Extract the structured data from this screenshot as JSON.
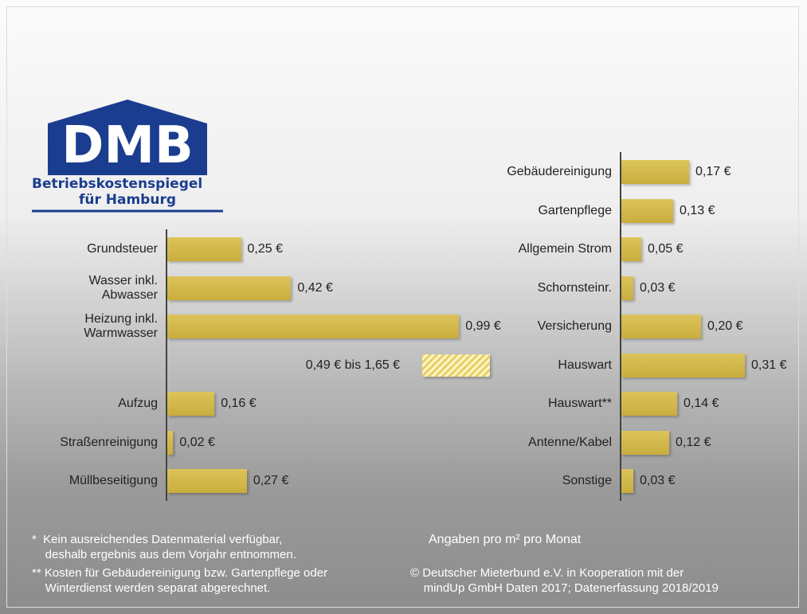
{
  "logo": {
    "title": "DMB",
    "line1": "Betriebskostenspiegel",
    "line2": "für Hamburg"
  },
  "chart_data": [
    {
      "type": "bar",
      "orientation": "horizontal",
      "categories": [
        "Grundsteuer",
        "Wasser inkl.\nAbwasser",
        "Heizung inkl.\nWarmwasser",
        "Aufzug",
        "Straßenreinigung",
        "Müllbeseitigung"
      ],
      "values": [
        0.25,
        0.42,
        0.99,
        0.16,
        0.02,
        0.27
      ],
      "value_labels": [
        "0,25 €",
        "0,42 €",
        "0,99 €",
        "0,16 €",
        "0,02 €",
        "0,27 €"
      ],
      "color": "#dcc45a",
      "annotations": [
        {
          "text": "0,49 € bis 1,65 €"
        }
      ]
    },
    {
      "type": "bar",
      "orientation": "horizontal",
      "categories": [
        "Gebäudereinigung",
        "Gartenpflege",
        "Allgemein Strom",
        "Schornsteinr.",
        "Versicherung",
        "Hauswart",
        "Hauswart**",
        "Antenne/Kabel",
        "Sonstige"
      ],
      "values": [
        0.17,
        0.13,
        0.05,
        0.03,
        0.2,
        0.31,
        0.14,
        0.12,
        0.03
      ],
      "value_labels": [
        "0,17 €",
        "0,13 €",
        "0,05 €",
        "0,03 €",
        "0,20 €",
        "0,31 €",
        "0,14 €",
        "0,12 €",
        "0,03 €"
      ],
      "color": "#dcc45a"
    }
  ],
  "notes": {
    "footnote1": "*  Kein ausreichendes Datenmaterial verfügbar,\n    deshalb ergebnis aus dem Vorjahr entnommen.",
    "footnote2": "** Kosten für Gebäudereinigung bzw. Gartenpflege oder\n    Winterdienst werden separat abgerechnet.",
    "unit": "Angaben pro m² pro Monat",
    "source": "© Deutscher Mieterbund e.V. in Kooperation mit der\n    mindUp GmbH Daten 2017; Datenerfassung 2018/2019"
  }
}
